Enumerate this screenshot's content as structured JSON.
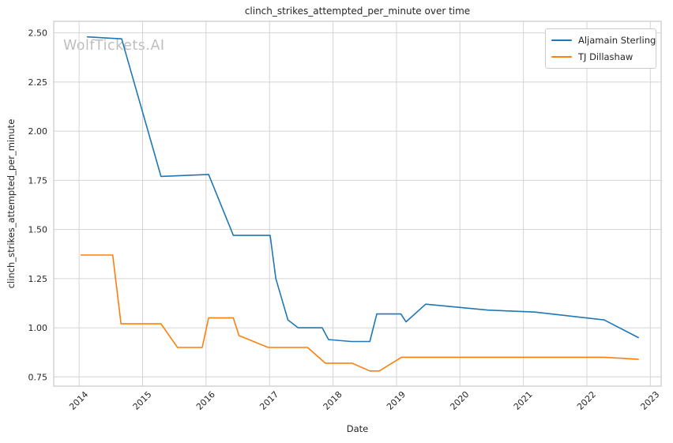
{
  "watermark": "WolfTickets.AI",
  "style": {
    "background": "#ffffff",
    "grid_color": "#d4d4d4",
    "spine_color": "#c9c9c9",
    "text_color": "#262626",
    "watermark_color": "#bebebe"
  },
  "chart_data": {
    "type": "line",
    "title": "clinch_strikes_attempted_per_minute over time",
    "xlabel": "Date",
    "ylabel": "clinch_strikes_attempted_per_minute",
    "grid": true,
    "legend_position": "upper right",
    "x_ticks": [
      2014,
      2015,
      2016,
      2017,
      2018,
      2019,
      2020,
      2021,
      2022,
      2023
    ],
    "y_ticks": [
      0.75,
      1.0,
      1.25,
      1.5,
      1.75,
      2.0,
      2.25,
      2.5
    ],
    "x_domain": [
      2013.6,
      2023.17
    ],
    "y_domain": [
      0.703,
      2.559
    ],
    "series": [
      {
        "name": "Aljamain Sterling",
        "color": "#1f77b4",
        "points": [
          [
            2014.13,
            2.48
          ],
          [
            2014.67,
            2.47
          ],
          [
            2015.29,
            1.77
          ],
          [
            2016.04,
            1.78
          ],
          [
            2016.43,
            1.47
          ],
          [
            2017.01,
            1.47
          ],
          [
            2017.1,
            1.25
          ],
          [
            2017.29,
            1.04
          ],
          [
            2017.45,
            1.0
          ],
          [
            2017.83,
            1.0
          ],
          [
            2017.93,
            0.94
          ],
          [
            2018.29,
            0.93
          ],
          [
            2018.58,
            0.93
          ],
          [
            2018.69,
            1.07
          ],
          [
            2019.07,
            1.07
          ],
          [
            2019.15,
            1.03
          ],
          [
            2019.46,
            1.12
          ],
          [
            2020.44,
            1.09
          ],
          [
            2021.18,
            1.08
          ],
          [
            2022.27,
            1.04
          ],
          [
            2022.81,
            0.95
          ]
        ]
      },
      {
        "name": "TJ Dillashaw",
        "color": "#ff7f0e",
        "points": [
          [
            2014.03,
            1.37
          ],
          [
            2014.53,
            1.37
          ],
          [
            2014.66,
            1.02
          ],
          [
            2015.29,
            1.02
          ],
          [
            2015.55,
            0.9
          ],
          [
            2015.94,
            0.9
          ],
          [
            2016.04,
            1.05
          ],
          [
            2016.43,
            1.05
          ],
          [
            2016.52,
            0.96
          ],
          [
            2016.98,
            0.9
          ],
          [
            2017.6,
            0.9
          ],
          [
            2017.88,
            0.82
          ],
          [
            2018.3,
            0.82
          ],
          [
            2018.58,
            0.78
          ],
          [
            2018.73,
            0.78
          ],
          [
            2019.08,
            0.85
          ],
          [
            2022.27,
            0.85
          ],
          [
            2022.81,
            0.84
          ]
        ]
      }
    ]
  }
}
